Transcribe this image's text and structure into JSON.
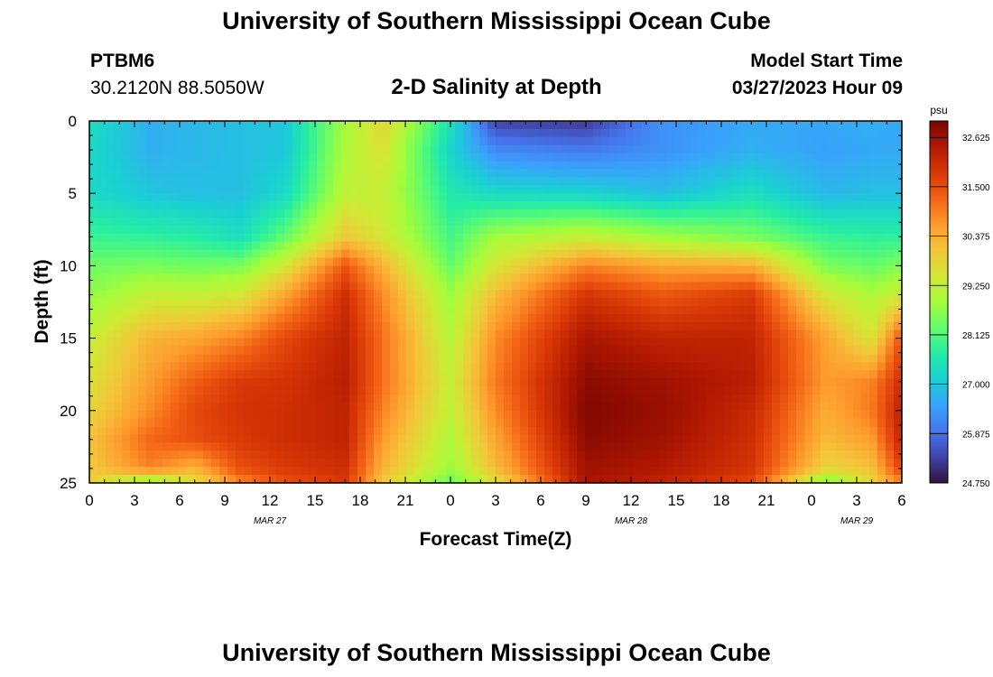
{
  "header": {
    "title": "University of Southern Mississippi Ocean Cube",
    "station_id": "PTBM6",
    "station_coords": "30.2120N  88.5050W",
    "subtitle": "2-D Salinity at Depth",
    "model_start_label": "Model Start Time",
    "model_start_value": "03/27/2023 Hour 09"
  },
  "footer": {
    "title": "University of Southern Mississippi Ocean Cube"
  },
  "chart_data": {
    "type": "heatmap",
    "title": "2-D Salinity at Depth",
    "xlabel": "Forecast Time(Z)",
    "ylabel": "Depth (ft)",
    "x_tick_labels": [
      "0",
      "3",
      "6",
      "9",
      "12",
      "15",
      "18",
      "21",
      "0",
      "3",
      "6",
      "9",
      "12",
      "15",
      "18",
      "21",
      "0",
      "3",
      "6"
    ],
    "x_hours": [
      0,
      3,
      6,
      9,
      12,
      15,
      18,
      21,
      24,
      27,
      30,
      33,
      36,
      39,
      42,
      45,
      48,
      51,
      54
    ],
    "xlim": [
      0,
      54
    ],
    "day_labels": [
      {
        "label": "MAR 27",
        "hour": 12
      },
      {
        "label": "MAR 28",
        "hour": 36
      },
      {
        "label": "MAR 29",
        "hour": 51
      }
    ],
    "y_tick_labels": [
      "0",
      "5",
      "10",
      "15",
      "20",
      "25"
    ],
    "y_ticks": [
      0,
      5,
      10,
      15,
      20,
      25
    ],
    "ylim": [
      0,
      25
    ],
    "y_inverted": true,
    "colorbar": {
      "unit": "psu",
      "min": 24.75,
      "max": 33.0,
      "tick_values": [
        24.75,
        25.875,
        27.0,
        28.125,
        29.25,
        30.375,
        31.5,
        32.625
      ],
      "tick_labels": [
        "24.750",
        "25.875",
        "27.000",
        "28.125",
        "29.250",
        "30.375",
        "31.500",
        "32.625"
      ],
      "colors": [
        "#30123b",
        "#4145ab",
        "#4675ed",
        "#39a2fc",
        "#1bcfd4",
        "#24eca6",
        "#61fc6c",
        "#a4fc3b",
        "#d1e834",
        "#f3c63a",
        "#fe9b2d",
        "#f36315",
        "#d93806",
        "#b11901",
        "#7a0402"
      ]
    },
    "profile_depths_ft": [
      0,
      2,
      5,
      8,
      10,
      12,
      15,
      18,
      20,
      22,
      24,
      25
    ],
    "profile_hours": [
      0,
      4,
      7,
      10,
      13,
      17,
      19.5,
      24,
      27,
      33,
      38,
      44,
      49,
      52,
      54
    ],
    "salinity_profiles": [
      [
        27.4,
        27.3,
        27.3,
        27.9,
        28.4,
        28.7,
        29.3,
        29.6,
        29.8,
        30.1,
        30.0,
        29.9
      ],
      [
        26.7,
        26.7,
        27.0,
        27.8,
        28.5,
        29.3,
        30.3,
        30.6,
        30.8,
        31.2,
        30.9,
        28.5
      ],
      [
        26.8,
        26.8,
        26.9,
        27.7,
        28.4,
        29.3,
        30.5,
        31.3,
        31.6,
        31.5,
        30.3,
        29.6
      ],
      [
        26.9,
        26.9,
        26.9,
        27.4,
        28.5,
        29.5,
        30.9,
        31.8,
        31.9,
        31.8,
        31.5,
        30.8
      ],
      [
        27.0,
        27.0,
        27.3,
        28.3,
        29.5,
        30.5,
        31.6,
        31.9,
        32.0,
        32.0,
        31.8,
        31.5
      ],
      [
        28.9,
        29.0,
        29.2,
        30.0,
        31.4,
        32.0,
        32.2,
        32.3,
        32.2,
        32.2,
        32.0,
        31.8
      ],
      [
        29.8,
        29.6,
        29.3,
        29.5,
        30.3,
        30.8,
        31.1,
        31.1,
        30.9,
        30.6,
        30.3,
        30.0
      ],
      [
        27.5,
        27.2,
        27.6,
        28.0,
        28.3,
        28.8,
        29.1,
        29.3,
        29.2,
        29.0,
        28.8,
        28.3
      ],
      [
        25.3,
        26.2,
        27.3,
        28.9,
        29.5,
        30.2,
        30.8,
        31.0,
        30.8,
        30.5,
        30.2,
        29.6
      ],
      [
        25.2,
        26.0,
        27.2,
        29.3,
        30.9,
        31.9,
        32.5,
        32.8,
        32.9,
        32.8,
        32.6,
        32.5
      ],
      [
        26.3,
        26.3,
        26.9,
        28.9,
        30.5,
        31.4,
        32.2,
        32.6,
        32.7,
        32.6,
        32.4,
        32.2
      ],
      [
        26.6,
        26.7,
        27.4,
        28.5,
        30.4,
        31.8,
        32.2,
        32.3,
        32.1,
        32.0,
        31.9,
        31.6
      ],
      [
        26.6,
        26.5,
        26.8,
        27.9,
        28.5,
        29.5,
        30.5,
        30.6,
        30.4,
        30.2,
        29.8,
        28.4
      ],
      [
        26.7,
        26.6,
        26.9,
        27.8,
        28.3,
        29.0,
        29.5,
        30.9,
        31.0,
        30.6,
        30.1,
        29.8
      ],
      [
        26.6,
        26.6,
        26.9,
        27.8,
        28.6,
        29.4,
        31.5,
        32.0,
        32.3,
        32.2,
        31.7,
        30.8
      ]
    ]
  }
}
